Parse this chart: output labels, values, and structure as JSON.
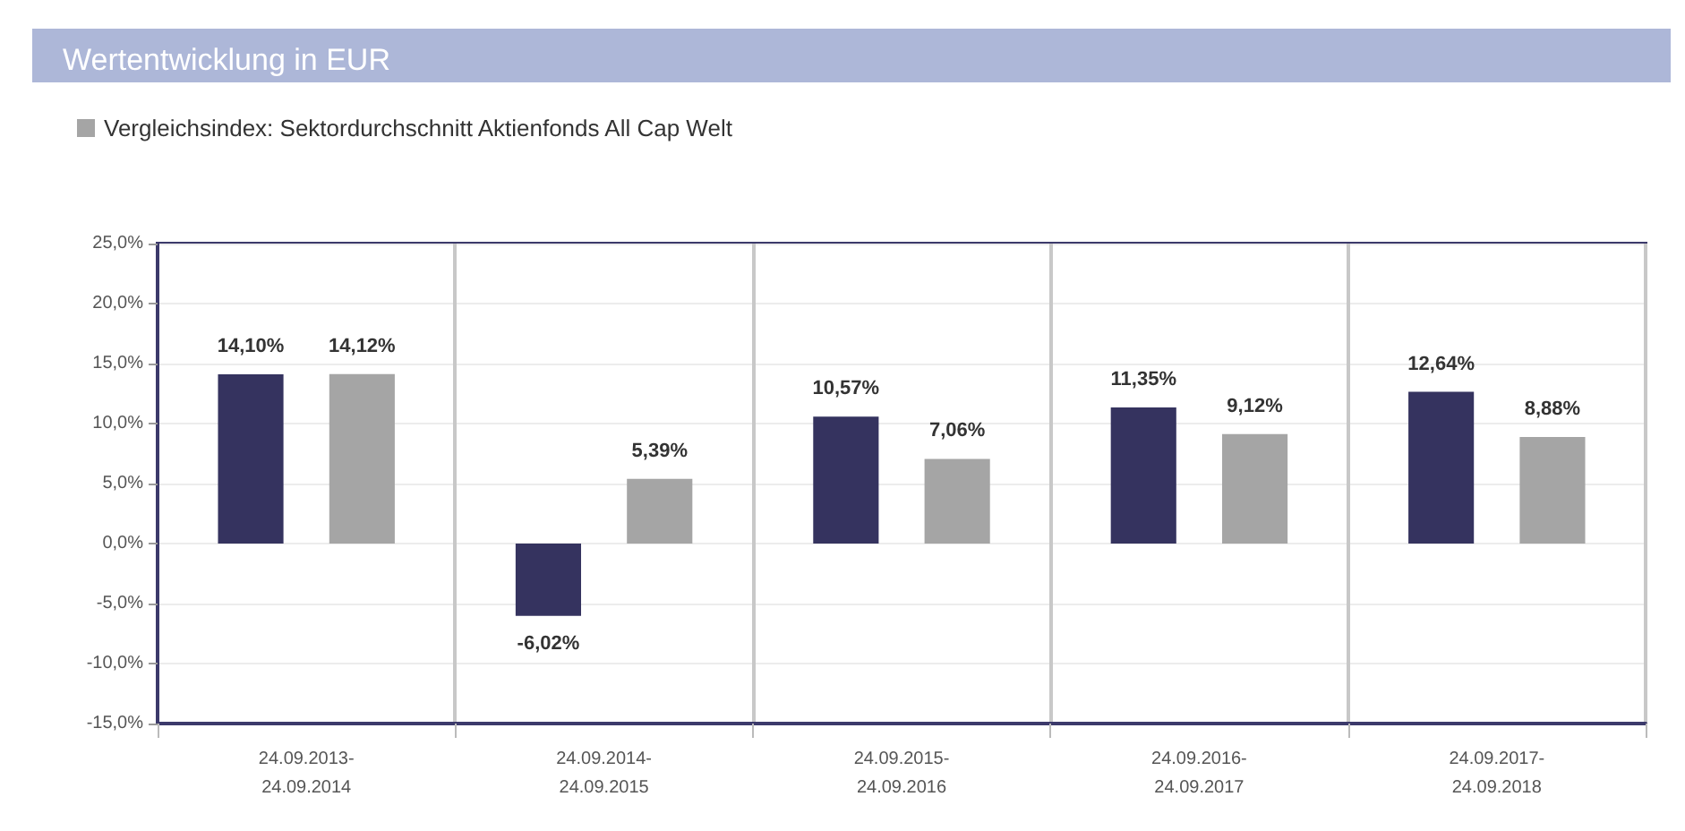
{
  "chart_data": {
    "type": "bar",
    "title": "Wertentwicklung in EUR",
    "categories": [
      "24.09.2013-\n24.09.2014",
      "24.09.2014-\n24.09.2015",
      "24.09.2015-\n24.09.2016",
      "24.09.2016-\n24.09.2017",
      "24.09.2017-\n24.09.2018"
    ],
    "series": [
      {
        "color": "#35335f",
        "values": [
          14.1,
          -6.02,
          10.57,
          11.35,
          12.64
        ],
        "value_labels": [
          "14,10%",
          "-6,02%",
          "10,57%",
          "11,35%",
          "12,64%"
        ]
      },
      {
        "name": "Vergleichsindex: Sektordurchschnitt Aktienfonds All Cap Welt",
        "color": "#a5a5a5",
        "values": [
          14.12,
          5.39,
          7.06,
          9.12,
          8.88
        ],
        "value_labels": [
          "14,12%",
          "5,39%",
          "7,06%",
          "9,12%",
          "8,88%"
        ]
      }
    ],
    "ylim": [
      -15,
      25
    ],
    "yticks": [
      {
        "value": -15,
        "label": "-15,0%"
      },
      {
        "value": -10,
        "label": "-10,0%"
      },
      {
        "value": -5,
        "label": "-5,0%"
      },
      {
        "value": 0,
        "label": "0,0%"
      },
      {
        "value": 5,
        "label": "5,0%"
      },
      {
        "value": 10,
        "label": "10,0%"
      },
      {
        "value": 15,
        "label": "15,0%"
      },
      {
        "value": 20,
        "label": "20,0%"
      },
      {
        "value": 25,
        "label": "25,0%"
      }
    ],
    "grid": true,
    "legend": "top left"
  }
}
